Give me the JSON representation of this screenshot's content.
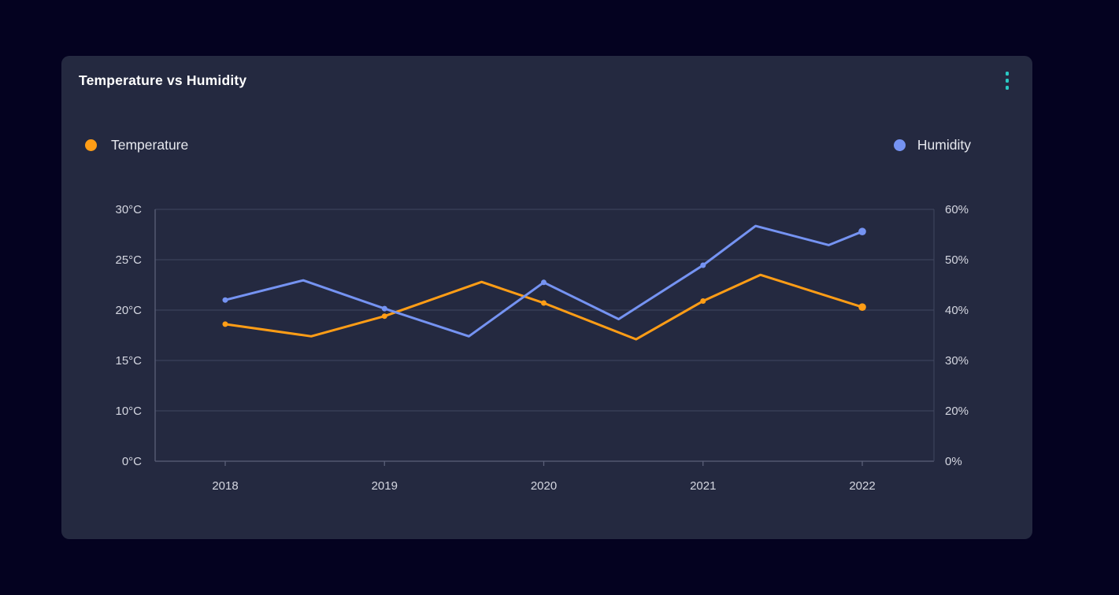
{
  "header": {
    "title": "Temperature vs Humidity"
  },
  "menu": {
    "icon": "kebab-menu-icon"
  },
  "legend": [
    {
      "label": "Temperature",
      "color": "#FF9D16"
    },
    {
      "label": "Humidity",
      "color": "#7593F2"
    }
  ],
  "colors": {
    "background": "#040220",
    "card": "#242940",
    "grid": "#414760",
    "axis_border": "#5A6078",
    "accent_teal": "#2AC9C4",
    "temperature": "#FF9D16",
    "humidity": "#7593F2",
    "text_primary": "#FFFFFF",
    "text_secondary": "#D5D7E1"
  },
  "chart_data": {
    "type": "line",
    "title": "Temperature vs Humidity",
    "x_tick_labels": [
      "2018",
      "2019",
      "2020",
      "2021",
      "2022"
    ],
    "x_range": [
      2018,
      2022
    ],
    "grid": true,
    "legend_position": "top, split left/right",
    "left_axis": {
      "unit": "°C",
      "tick_labels_top_down": [
        "30°C",
        "25°C",
        "20°C",
        "15°C",
        "10°C",
        "0°C"
      ],
      "tick_values_bottom_up": [
        0,
        10,
        15,
        20,
        25,
        30
      ]
    },
    "right_axis": {
      "unit": "%",
      "tick_labels_top_down": [
        "60%",
        "50%",
        "40%",
        "30%",
        "20%",
        "0%"
      ],
      "tick_values_bottom_up": [
        0,
        20,
        30,
        40,
        50,
        60
      ]
    },
    "series": [
      {
        "name": "Temperature",
        "axis": "left",
        "color": "#FF9D16",
        "points": [
          [
            2018.0,
            18.6
          ],
          [
            2018.54,
            17.4
          ],
          [
            2019.0,
            19.4
          ],
          [
            2019.61,
            22.8
          ],
          [
            2020.0,
            20.7
          ],
          [
            2020.58,
            17.1
          ],
          [
            2021.0,
            20.9
          ],
          [
            2021.36,
            23.5
          ],
          [
            2022.0,
            20.3
          ]
        ]
      },
      {
        "name": "Humidity",
        "axis": "right",
        "color": "#7593F2",
        "points": [
          [
            2018.0,
            42.0
          ],
          [
            2018.49,
            45.9
          ],
          [
            2019.0,
            40.3
          ],
          [
            2019.53,
            34.8
          ],
          [
            2020.0,
            45.5
          ],
          [
            2020.47,
            38.2
          ],
          [
            2021.0,
            48.9
          ],
          [
            2021.33,
            56.7
          ],
          [
            2021.79,
            52.9
          ],
          [
            2022.0,
            55.6
          ]
        ]
      }
    ]
  }
}
